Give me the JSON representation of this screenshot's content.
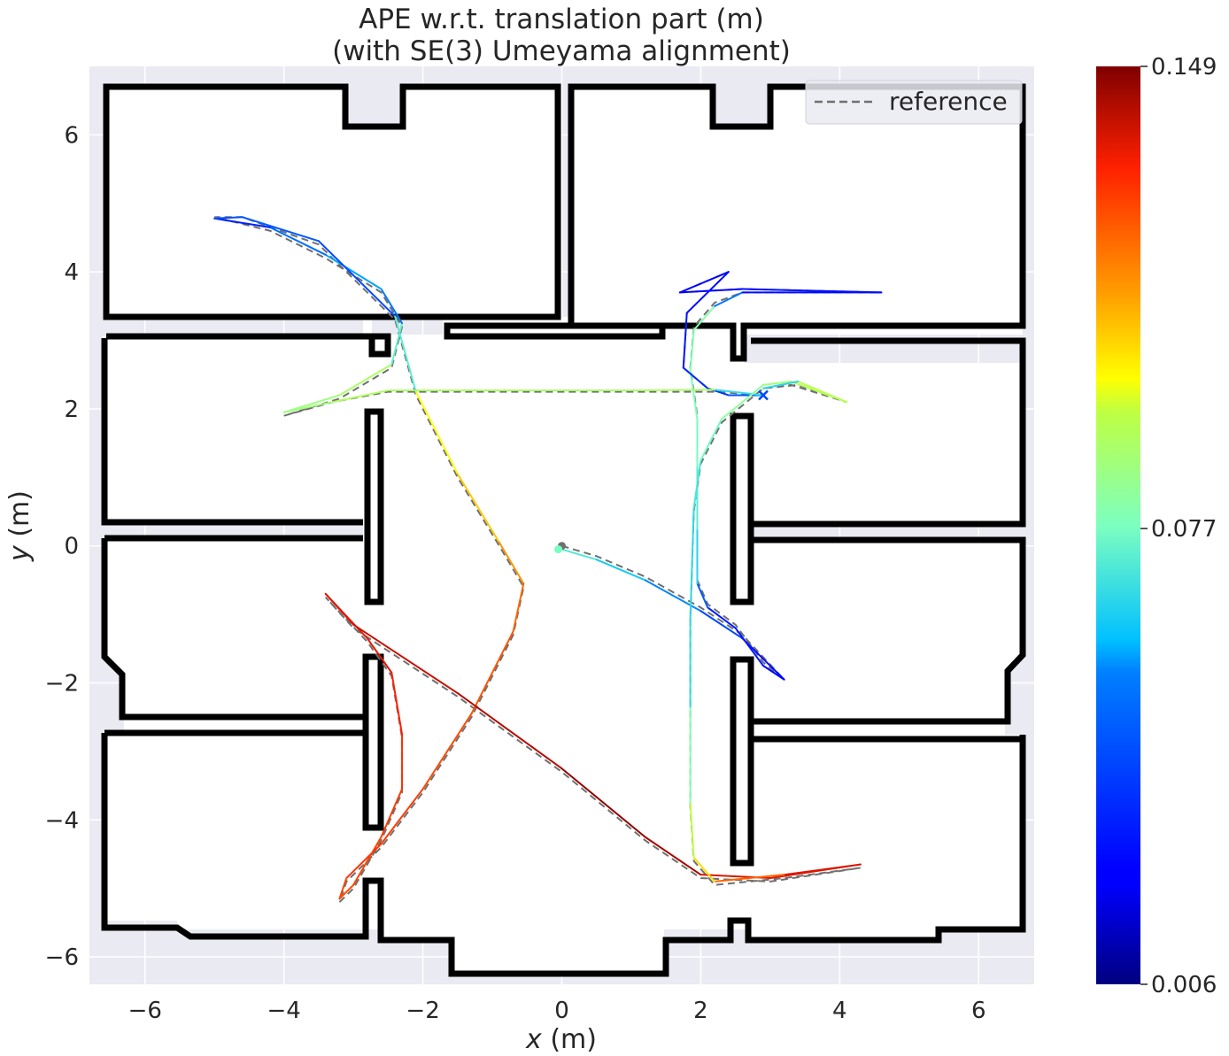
{
  "chart_data": {
    "type": "line",
    "title": "APE w.r.t. translation part (m)",
    "subtitle": "(with SE(3) Umeyama alignment)",
    "xlabel_italic": "x",
    "xlabel_unit": " (m)",
    "ylabel_italic": "y",
    "ylabel_unit": " (m)",
    "xlim": [
      -6.8,
      6.8
    ],
    "ylim": [
      -6.4,
      7.0
    ],
    "xticks": [
      -6,
      -4,
      -2,
      0,
      2,
      4,
      6
    ],
    "yticks": [
      -6,
      -4,
      -2,
      0,
      2,
      4,
      6
    ],
    "xtick_labels": [
      "−6",
      "−4",
      "−2",
      "0",
      "2",
      "4",
      "6"
    ],
    "ytick_labels": [
      "−6",
      "−4",
      "−2",
      "0",
      "2",
      "4",
      "6"
    ],
    "grid": true,
    "legend": {
      "position": "top-right",
      "entries": [
        "reference"
      ]
    },
    "colorbar": {
      "colormap": "jet",
      "min": 0.006,
      "max": 0.149,
      "tick_values": [
        0.006,
        0.077,
        0.149
      ],
      "tick_labels": [
        "0.006",
        "0.077",
        "0.149"
      ]
    },
    "reference_trajectory": [
      [
        0.0,
        0.0
      ],
      [
        0.5,
        -0.15
      ],
      [
        1.2,
        -0.45
      ],
      [
        2.0,
        -0.9
      ],
      [
        2.6,
        -1.3
      ],
      [
        3.2,
        -1.95
      ],
      [
        2.9,
        -1.7
      ],
      [
        2.5,
        -1.15
      ],
      [
        2.1,
        -0.85
      ],
      [
        1.95,
        -0.5
      ],
      [
        1.95,
        0.3
      ],
      [
        1.95,
        1.2
      ],
      [
        1.95,
        1.9
      ],
      [
        1.85,
        2.6
      ],
      [
        1.9,
        3.2
      ],
      [
        2.2,
        3.55
      ],
      [
        2.6,
        3.7
      ],
      [
        4.6,
        3.7
      ],
      [
        2.6,
        3.75
      ],
      [
        1.7,
        3.7
      ],
      [
        2.4,
        4.0
      ],
      [
        1.8,
        3.4
      ],
      [
        1.75,
        2.6
      ],
      [
        2.1,
        2.3
      ],
      [
        2.4,
        2.2
      ],
      [
        2.9,
        2.2
      ],
      [
        2.2,
        2.25
      ],
      [
        1.0,
        2.25
      ],
      [
        -0.5,
        2.25
      ],
      [
        -2.5,
        2.25
      ],
      [
        -3.3,
        2.1
      ],
      [
        -4.0,
        1.9
      ],
      [
        -3.2,
        2.15
      ],
      [
        -2.45,
        2.6
      ],
      [
        -2.3,
        3.2
      ],
      [
        -2.6,
        3.7
      ],
      [
        -3.4,
        4.2
      ],
      [
        -4.2,
        4.6
      ],
      [
        -5.0,
        4.8
      ],
      [
        -4.6,
        4.8
      ],
      [
        -3.5,
        4.4
      ],
      [
        -2.4,
        3.3
      ],
      [
        -2.1,
        2.2
      ],
      [
        -1.5,
        1.0
      ],
      [
        -0.9,
        0.0
      ],
      [
        -0.55,
        -0.6
      ],
      [
        -0.7,
        -1.3
      ],
      [
        -1.3,
        -2.5
      ],
      [
        -2.0,
        -3.6
      ],
      [
        -2.6,
        -4.4
      ],
      [
        -3.1,
        -4.9
      ],
      [
        -3.2,
        -5.2
      ],
      [
        -3.0,
        -5.0
      ],
      [
        -2.6,
        -4.3
      ],
      [
        -2.3,
        -3.6
      ],
      [
        -2.3,
        -2.8
      ],
      [
        -2.45,
        -1.9
      ],
      [
        -2.8,
        -1.4
      ],
      [
        -3.4,
        -0.75
      ],
      [
        -3.0,
        -1.2
      ],
      [
        -1.5,
        -2.2
      ],
      [
        0.0,
        -3.3
      ],
      [
        1.2,
        -4.3
      ],
      [
        2.0,
        -4.85
      ],
      [
        3.0,
        -4.9
      ],
      [
        4.3,
        -4.7
      ],
      [
        3.2,
        -4.85
      ],
      [
        2.2,
        -4.95
      ],
      [
        1.9,
        -4.6
      ],
      [
        1.85,
        -3.8
      ],
      [
        1.85,
        -2.4
      ],
      [
        1.85,
        -1.1
      ],
      [
        1.9,
        0.5
      ],
      [
        2.0,
        1.2
      ],
      [
        2.3,
        1.8
      ],
      [
        2.9,
        2.3
      ],
      [
        3.3,
        2.35
      ],
      [
        4.1,
        2.1
      ],
      [
        3.4,
        2.35
      ],
      [
        2.9,
        2.3
      ]
    ],
    "estimate_trajectory": {
      "x": [
        0.0,
        0.5,
        1.2,
        2.0,
        2.6,
        3.2,
        2.9,
        2.5,
        2.1,
        1.95,
        1.95,
        1.95,
        1.95,
        1.85,
        1.9,
        2.2,
        2.6,
        4.6,
        2.6,
        1.7,
        2.4,
        1.8,
        1.75,
        2.1,
        2.4,
        2.9,
        2.2,
        1.0,
        -0.5,
        -2.5,
        -3.3,
        -4.0,
        -3.2,
        -2.45,
        -2.3,
        -2.6,
        -3.4,
        -4.2,
        -5.0,
        -4.6,
        -3.5,
        -2.4,
        -2.1,
        -1.5,
        -0.9,
        -0.55,
        -0.7,
        -1.3,
        -2.0,
        -2.6,
        -3.1,
        -3.2,
        -3.0,
        -2.6,
        -2.3,
        -2.3,
        -2.45,
        -2.8,
        -3.4,
        -3.0,
        -1.5,
        0.0,
        1.2,
        2.0,
        3.0,
        4.3,
        3.2,
        2.2,
        1.9,
        1.85,
        1.85,
        1.85,
        1.9,
        2.0,
        2.3,
        2.9,
        3.3,
        4.1,
        3.4,
        2.9
      ],
      "y": [
        -0.05,
        -0.2,
        -0.5,
        -0.95,
        -1.35,
        -1.95,
        -1.75,
        -1.2,
        -0.9,
        -0.55,
        0.25,
        1.15,
        1.85,
        2.55,
        3.15,
        3.5,
        3.7,
        3.7,
        3.75,
        3.7,
        4.0,
        3.4,
        2.6,
        2.3,
        2.2,
        2.2,
        2.28,
        2.27,
        2.27,
        2.27,
        2.1,
        1.95,
        2.2,
        2.65,
        3.25,
        3.75,
        4.25,
        4.65,
        4.78,
        4.8,
        4.45,
        3.35,
        2.25,
        1.05,
        0.05,
        -0.55,
        -1.25,
        -2.45,
        -3.55,
        -4.35,
        -4.85,
        -5.15,
        -4.95,
        -4.25,
        -3.55,
        -2.75,
        -1.85,
        -1.35,
        -0.7,
        -1.15,
        -2.15,
        -3.25,
        -4.25,
        -4.8,
        -4.85,
        -4.65,
        -4.8,
        -4.9,
        -4.55,
        -3.75,
        -2.35,
        -1.05,
        0.55,
        1.25,
        1.85,
        2.35,
        2.4,
        2.1,
        2.4,
        2.3
      ],
      "ape_error": [
        0.077,
        0.065,
        0.06,
        0.05,
        0.03,
        0.02,
        0.025,
        0.03,
        0.028,
        0.06,
        0.07,
        0.075,
        0.078,
        0.078,
        0.08,
        0.08,
        0.025,
        0.025,
        0.025,
        0.02,
        0.025,
        0.025,
        0.03,
        0.035,
        0.04,
        0.045,
        0.09,
        0.09,
        0.088,
        0.092,
        0.09,
        0.085,
        0.088,
        0.092,
        0.055,
        0.05,
        0.065,
        0.035,
        0.025,
        0.06,
        0.03,
        0.05,
        0.095,
        0.105,
        0.11,
        0.12,
        0.125,
        0.125,
        0.128,
        0.13,
        0.13,
        0.125,
        0.128,
        0.128,
        0.13,
        0.132,
        0.135,
        0.138,
        0.135,
        0.14,
        0.14,
        0.145,
        0.149,
        0.14,
        0.135,
        0.14,
        0.135,
        0.11,
        0.1,
        0.09,
        0.07,
        0.065,
        0.068,
        0.072,
        0.08,
        0.085,
        0.09,
        0.095,
        0.092,
        0.04
      ]
    },
    "start_marker": {
      "reference": [
        0.0,
        0.0
      ],
      "estimate": [
        -0.05,
        -0.05
      ]
    },
    "end_marker": {
      "estimate": [
        2.9,
        2.2
      ]
    }
  }
}
